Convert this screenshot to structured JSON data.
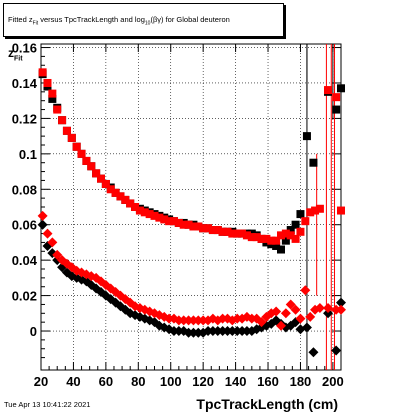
{
  "title": {
    "prefix": "Fitted z",
    "sub1": "Fit",
    "mid": " versus TpcTrackLength and log",
    "sub2": "10",
    "suffix": "(βγ) for Global deuteron"
  },
  "timestamp": "Tue Apr 13 10:41:22 2021",
  "chart_data": {
    "type": "scatter",
    "title": "Fitted zFit versus TpcTrackLength and log10(βγ) for Global deuteron",
    "xlabel": "TpcTrackLength (cm)",
    "ylabel": "zFit",
    "ylabel_main": "z",
    "ylabel_sub": "Fit",
    "xlim": [
      20,
      205
    ],
    "ylim": [
      -0.022,
      0.162
    ],
    "x_ticks": [
      20,
      40,
      60,
      80,
      100,
      120,
      140,
      160,
      180,
      200
    ],
    "y_ticks": [
      0,
      0.02,
      0.04,
      0.06,
      0.08,
      0.1,
      0.12,
      0.14,
      0.16
    ],
    "y_tick_labels": [
      "0",
      "0.02",
      "0.04",
      "0.06",
      "0.08",
      "0.1",
      "0.12",
      "0.14",
      "0.16"
    ],
    "grid": true,
    "series": [
      {
        "marker": "square",
        "color": "#000000",
        "points": [
          [
            21,
            0.145
          ],
          [
            24,
            0.138
          ],
          [
            27,
            0.131
          ],
          [
            30,
            0.126
          ],
          [
            33,
            0.119
          ],
          [
            36,
            0.113
          ],
          [
            39,
            0.109
          ],
          [
            42,
            0.104
          ],
          [
            45,
            0.1
          ],
          [
            48,
            0.096
          ],
          [
            51,
            0.093
          ],
          [
            54,
            0.089
          ],
          [
            57,
            0.086
          ],
          [
            60,
            0.083
          ],
          [
            63,
            0.081
          ],
          [
            66,
            0.078
          ],
          [
            69,
            0.076
          ],
          [
            72,
            0.074
          ],
          [
            75,
            0.072
          ],
          [
            78,
            0.07
          ],
          [
            81,
            0.069
          ],
          [
            84,
            0.068
          ],
          [
            87,
            0.067
          ],
          [
            90,
            0.066
          ],
          [
            93,
            0.065
          ],
          [
            96,
            0.064
          ],
          [
            99,
            0.063
          ],
          [
            102,
            0.062
          ],
          [
            105,
            0.061
          ],
          [
            108,
            0.061
          ],
          [
            111,
            0.06
          ],
          [
            114,
            0.06
          ],
          [
            117,
            0.059
          ],
          [
            120,
            0.058
          ],
          [
            123,
            0.058
          ],
          [
            126,
            0.057
          ],
          [
            129,
            0.057
          ],
          [
            132,
            0.056
          ],
          [
            135,
            0.056
          ],
          [
            138,
            0.056
          ],
          [
            141,
            0.055
          ],
          [
            144,
            0.055
          ],
          [
            147,
            0.055
          ],
          [
            150,
            0.055
          ],
          [
            153,
            0.054
          ],
          [
            156,
            0.052
          ],
          [
            159,
            0.05
          ],
          [
            162,
            0.049
          ],
          [
            165,
            0.048
          ],
          [
            168,
            0.046
          ],
          [
            171,
            0.051
          ],
          [
            174,
            0.057
          ],
          [
            177,
            0.06
          ],
          [
            180,
            0.066
          ],
          [
            184,
            0.11
          ],
          [
            188,
            0.095
          ],
          [
            197,
            0.135
          ],
          [
            202,
            0.125
          ],
          [
            205,
            0.137
          ]
        ]
      },
      {
        "marker": "square",
        "color": "#ff0000",
        "points": [
          [
            21,
            0.146
          ],
          [
            24,
            0.14
          ],
          [
            27,
            0.134
          ],
          [
            30,
            0.125
          ],
          [
            33,
            0.119
          ],
          [
            36,
            0.113
          ],
          [
            39,
            0.109
          ],
          [
            42,
            0.104
          ],
          [
            45,
            0.1
          ],
          [
            48,
            0.096
          ],
          [
            51,
            0.093
          ],
          [
            54,
            0.089
          ],
          [
            57,
            0.086
          ],
          [
            60,
            0.083
          ],
          [
            63,
            0.08
          ],
          [
            66,
            0.078
          ],
          [
            69,
            0.076
          ],
          [
            72,
            0.074
          ],
          [
            75,
            0.072
          ],
          [
            78,
            0.07
          ],
          [
            81,
            0.068
          ],
          [
            84,
            0.067
          ],
          [
            87,
            0.066
          ],
          [
            90,
            0.065
          ],
          [
            93,
            0.064
          ],
          [
            96,
            0.063
          ],
          [
            99,
            0.062
          ],
          [
            102,
            0.062
          ],
          [
            105,
            0.061
          ],
          [
            108,
            0.06
          ],
          [
            111,
            0.06
          ],
          [
            114,
            0.059
          ],
          [
            117,
            0.059
          ],
          [
            120,
            0.058
          ],
          [
            123,
            0.058
          ],
          [
            126,
            0.057
          ],
          [
            129,
            0.057
          ],
          [
            132,
            0.056
          ],
          [
            135,
            0.056
          ],
          [
            138,
            0.055
          ],
          [
            141,
            0.055
          ],
          [
            144,
            0.055
          ],
          [
            147,
            0.054
          ],
          [
            150,
            0.053
          ],
          [
            153,
            0.053
          ],
          [
            156,
            0.052
          ],
          [
            159,
            0.052
          ],
          [
            162,
            0.051
          ],
          [
            165,
            0.051
          ],
          [
            168,
            0.054
          ],
          [
            171,
            0.055
          ],
          [
            174,
            0.054
          ],
          [
            177,
            0.052
          ],
          [
            180,
            0.056
          ],
          [
            183,
            0.062
          ],
          [
            186,
            0.067
          ],
          [
            189,
            0.068
          ],
          [
            192,
            0.069
          ],
          [
            197,
            0.136
          ],
          [
            202,
            0.132
          ],
          [
            205,
            0.068
          ]
        ]
      },
      {
        "marker": "diamond",
        "color": "#000000",
        "points": [
          [
            21,
            0.06
          ],
          [
            24,
            0.048
          ],
          [
            27,
            0.044
          ],
          [
            30,
            0.04
          ],
          [
            33,
            0.036
          ],
          [
            36,
            0.033
          ],
          [
            39,
            0.031
          ],
          [
            42,
            0.03
          ],
          [
            45,
            0.029
          ],
          [
            48,
            0.028
          ],
          [
            51,
            0.026
          ],
          [
            54,
            0.024
          ],
          [
            57,
            0.022
          ],
          [
            60,
            0.02
          ],
          [
            63,
            0.018
          ],
          [
            66,
            0.016
          ],
          [
            69,
            0.014
          ],
          [
            72,
            0.012
          ],
          [
            75,
            0.01
          ],
          [
            78,
            0.009
          ],
          [
            81,
            0.008
          ],
          [
            84,
            0.007
          ],
          [
            87,
            0.006
          ],
          [
            90,
            0.005
          ],
          [
            93,
            0.003
          ],
          [
            96,
            0.002
          ],
          [
            99,
            0.001
          ],
          [
            102,
            0.0
          ],
          [
            105,
            0.0
          ],
          [
            108,
            0.0
          ],
          [
            111,
            -0.001
          ],
          [
            114,
            -0.001
          ],
          [
            117,
            -0.001
          ],
          [
            120,
            -0.001
          ],
          [
            123,
            0.0
          ],
          [
            126,
            0.0
          ],
          [
            129,
            0.0
          ],
          [
            132,
            0.0
          ],
          [
            135,
            0.0
          ],
          [
            138,
            0.0
          ],
          [
            141,
            0.0
          ],
          [
            144,
            0.0
          ],
          [
            147,
            0.0
          ],
          [
            150,
            0.0
          ],
          [
            153,
            0.001
          ],
          [
            156,
            0.002
          ],
          [
            159,
            0.003
          ],
          [
            162,
            0.004
          ],
          [
            165,
            0.006
          ],
          [
            168,
            0.004
          ],
          [
            171,
            0.002
          ],
          [
            174,
            0.003
          ],
          [
            177,
            0.005
          ],
          [
            180,
            0.001
          ],
          [
            184,
            0.002
          ],
          [
            188,
            -0.012
          ],
          [
            197,
            0.01
          ],
          [
            202,
            -0.011
          ],
          [
            205,
            0.016
          ]
        ]
      },
      {
        "marker": "diamond",
        "color": "#ff0000",
        "points": [
          [
            21,
            0.065
          ],
          [
            24,
            0.055
          ],
          [
            27,
            0.05
          ],
          [
            30,
            0.043
          ],
          [
            33,
            0.04
          ],
          [
            36,
            0.038
          ],
          [
            39,
            0.036
          ],
          [
            42,
            0.034
          ],
          [
            45,
            0.033
          ],
          [
            48,
            0.032
          ],
          [
            51,
            0.031
          ],
          [
            54,
            0.03
          ],
          [
            57,
            0.028
          ],
          [
            60,
            0.026
          ],
          [
            63,
            0.024
          ],
          [
            66,
            0.022
          ],
          [
            69,
            0.02
          ],
          [
            72,
            0.018
          ],
          [
            75,
            0.016
          ],
          [
            78,
            0.014
          ],
          [
            81,
            0.013
          ],
          [
            84,
            0.012
          ],
          [
            87,
            0.011
          ],
          [
            90,
            0.01
          ],
          [
            93,
            0.009
          ],
          [
            96,
            0.008
          ],
          [
            99,
            0.007
          ],
          [
            102,
            0.007
          ],
          [
            105,
            0.006
          ],
          [
            108,
            0.006
          ],
          [
            111,
            0.006
          ],
          [
            114,
            0.006
          ],
          [
            117,
            0.006
          ],
          [
            120,
            0.006
          ],
          [
            123,
            0.006
          ],
          [
            126,
            0.007
          ],
          [
            129,
            0.006
          ],
          [
            132,
            0.007
          ],
          [
            135,
            0.007
          ],
          [
            138,
            0.006
          ],
          [
            141,
            0.007
          ],
          [
            144,
            0.007
          ],
          [
            147,
            0.008
          ],
          [
            150,
            0.007
          ],
          [
            153,
            0.007
          ],
          [
            156,
            0.005
          ],
          [
            159,
            0.008
          ],
          [
            162,
            0.01
          ],
          [
            165,
            0.011
          ],
          [
            168,
            0.003
          ],
          [
            171,
            0.01
          ],
          [
            174,
            0.015
          ],
          [
            177,
            0.012
          ],
          [
            180,
            0.007
          ],
          [
            183,
            0.023
          ],
          [
            186,
            0.008
          ],
          [
            189,
            0.012
          ],
          [
            192,
            0.013
          ],
          [
            197,
            0.013
          ],
          [
            202,
            0.012
          ],
          [
            205,
            0.012
          ]
        ]
      }
    ],
    "error_bars": [
      {
        "color": "#000000",
        "x": 184,
        "low": 0.13,
        "high": 0.162
      },
      {
        "color": "#000000",
        "x": 184,
        "low": -0.022,
        "high": 0.162
      },
      {
        "color": "#ff0000",
        "x": 190,
        "low": 0.02,
        "high": 0.1
      },
      {
        "color": "#ff0000",
        "x": 196,
        "low": -0.022,
        "high": 0.162
      },
      {
        "color": "#ff0000",
        "x": 199,
        "low": -0.022,
        "high": 0.162
      },
      {
        "color": "#ff0000",
        "x": 201,
        "low": -0.022,
        "high": 0.162
      },
      {
        "color": "#000000",
        "x": 200,
        "low": 0.12,
        "high": 0.162
      }
    ]
  }
}
